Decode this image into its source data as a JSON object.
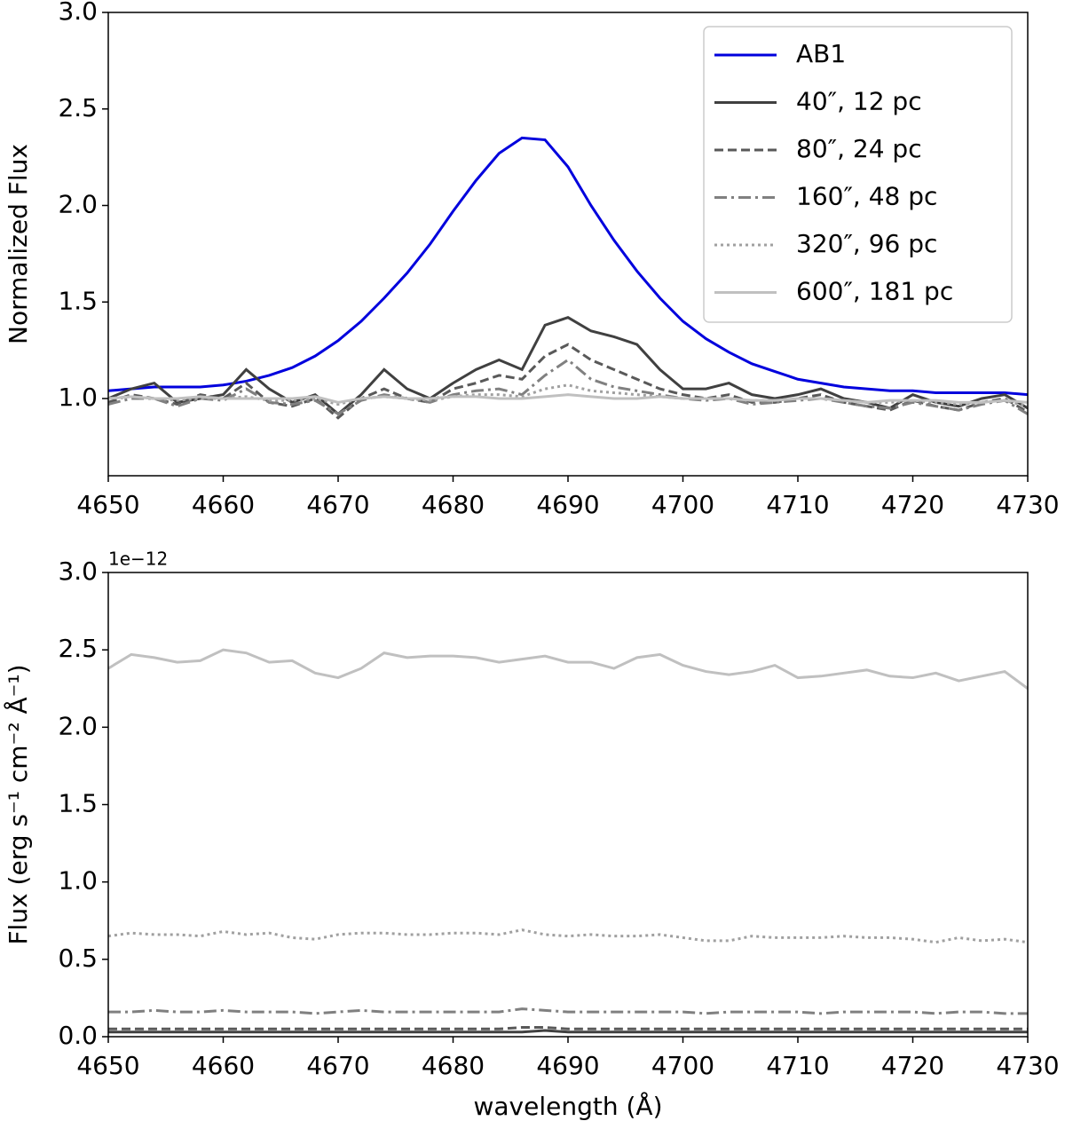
{
  "chart_data": [
    {
      "type": "line",
      "ylabel": "Normalized Flux",
      "x": [
        4650,
        4652,
        4654,
        4656,
        4658,
        4660,
        4662,
        4664,
        4666,
        4668,
        4670,
        4672,
        4674,
        4676,
        4678,
        4680,
        4682,
        4684,
        4686,
        4688,
        4690,
        4692,
        4694,
        4696,
        4698,
        4700,
        4702,
        4704,
        4706,
        4708,
        4710,
        4712,
        4714,
        4716,
        4718,
        4720,
        4722,
        4724,
        4726,
        4728,
        4730
      ],
      "xlim": [
        4650,
        4730
      ],
      "xticks": [
        4650,
        4660,
        4670,
        4680,
        4690,
        4700,
        4710,
        4720,
        4730
      ],
      "ylim": [
        0.6,
        3.0
      ],
      "yticks": [
        {
          "value": 1,
          "label": "1.0"
        },
        1.5,
        {
          "value": 2,
          "label": "2.0"
        },
        2.5,
        {
          "value": 3,
          "label": "3.0"
        }
      ],
      "legend": "upper right",
      "series": [
        {
          "name": "AB1",
          "color": "#0000dd",
          "linestyle": "solid",
          "values": [
            1.04,
            1.05,
            1.06,
            1.06,
            1.06,
            1.07,
            1.09,
            1.12,
            1.16,
            1.22,
            1.3,
            1.4,
            1.52,
            1.65,
            1.8,
            1.97,
            2.13,
            2.27,
            2.35,
            2.34,
            2.2,
            2.0,
            1.82,
            1.66,
            1.52,
            1.4,
            1.31,
            1.24,
            1.18,
            1.14,
            1.1,
            1.08,
            1.06,
            1.05,
            1.04,
            1.04,
            1.03,
            1.03,
            1.03,
            1.03,
            1.02
          ]
        },
        {
          "name": "40″, 12 pc",
          "color": "#404040",
          "linestyle": "solid",
          "values": [
            1.0,
            1.05,
            1.08,
            0.98,
            1.0,
            1.02,
            1.15,
            1.05,
            0.98,
            1.02,
            0.92,
            1.02,
            1.15,
            1.05,
            1.0,
            1.08,
            1.15,
            1.2,
            1.15,
            1.38,
            1.42,
            1.35,
            1.32,
            1.28,
            1.15,
            1.05,
            1.05,
            1.08,
            1.02,
            1.0,
            1.02,
            1.05,
            1.0,
            0.98,
            0.95,
            1.02,
            0.98,
            0.96,
            1.0,
            1.02,
            0.95
          ]
        },
        {
          "name": "80″, 24 pc",
          "color": "#595959",
          "linestyle": "dashed",
          "values": [
            0.98,
            1.02,
            1.0,
            0.97,
            1.02,
            1.0,
            1.08,
            0.98,
            0.96,
            1.0,
            0.9,
            1.0,
            1.05,
            1.0,
            0.98,
            1.05,
            1.08,
            1.12,
            1.1,
            1.22,
            1.28,
            1.2,
            1.15,
            1.1,
            1.05,
            1.02,
            1.0,
            1.02,
            0.98,
            0.98,
            1.0,
            1.02,
            0.98,
            0.96,
            0.94,
            0.99,
            0.96,
            0.94,
            0.98,
            1.0,
            0.93
          ]
        },
        {
          "name": "160″, 48 pc",
          "color": "#808080",
          "linestyle": "dashdot",
          "values": [
            0.97,
            1.0,
            1.0,
            0.96,
            1.0,
            0.99,
            1.05,
            0.98,
            0.97,
            0.99,
            0.92,
            0.99,
            1.02,
            1.0,
            0.98,
            1.02,
            1.04,
            1.05,
            1.02,
            1.12,
            1.2,
            1.1,
            1.06,
            1.04,
            1.02,
            1.0,
            0.99,
            1.0,
            0.97,
            0.98,
            0.99,
            1.0,
            0.98,
            0.96,
            0.95,
            0.98,
            0.96,
            0.94,
            0.97,
            0.99,
            0.92
          ]
        },
        {
          "name": "320″, 96 pc",
          "color": "#a0a0a0",
          "linestyle": "dotted",
          "values": [
            1.0,
            1.01,
            1.0,
            0.99,
            1.0,
            1.0,
            1.01,
            0.99,
            0.99,
            1.0,
            0.97,
            1.0,
            1.01,
            1.0,
            0.99,
            1.01,
            1.02,
            1.02,
            1.01,
            1.05,
            1.07,
            1.04,
            1.03,
            1.02,
            1.01,
            1.0,
            1.0,
            1.0,
            0.99,
            0.99,
            1.0,
            1.0,
            0.99,
            0.98,
            0.98,
            0.99,
            0.98,
            0.97,
            0.98,
            0.99,
            0.96
          ]
        },
        {
          "name": "600″, 181 pc",
          "color": "#c0c0c0",
          "linestyle": "solid",
          "values": [
            1.0,
            1.01,
            1.0,
            1.0,
            1.01,
            1.0,
            1.0,
            1.0,
            1.0,
            1.01,
            0.98,
            1.0,
            1.01,
            1.0,
            1.0,
            1.01,
            1.01,
            1.0,
            1.0,
            1.01,
            1.02,
            1.01,
            1.0,
            1.0,
            1.01,
            1.0,
            1.0,
            1.0,
            0.99,
            0.99,
            1.0,
            1.0,
            0.99,
            0.98,
            0.99,
            0.99,
            0.99,
            0.98,
            0.98,
            0.99,
            0.98
          ]
        }
      ]
    },
    {
      "type": "line",
      "ylabel": "Flux (erg s⁻¹ cm⁻² Å⁻¹)",
      "xlabel": "wavelength (Å)",
      "offset_text": "1e−12",
      "x": [
        4650,
        4652,
        4654,
        4656,
        4658,
        4660,
        4662,
        4664,
        4666,
        4668,
        4670,
        4672,
        4674,
        4676,
        4678,
        4680,
        4682,
        4684,
        4686,
        4688,
        4690,
        4692,
        4694,
        4696,
        4698,
        4700,
        4702,
        4704,
        4706,
        4708,
        4710,
        4712,
        4714,
        4716,
        4718,
        4720,
        4722,
        4724,
        4726,
        4728,
        4730
      ],
      "xlim": [
        4650,
        4730
      ],
      "xticks": [
        4650,
        4660,
        4670,
        4680,
        4690,
        4700,
        4710,
        4720,
        4730
      ],
      "ylim": [
        0,
        3.0
      ],
      "yticks": [
        {
          "value": 0,
          "label": "0.0"
        },
        0.5,
        {
          "value": 1,
          "label": "1.0"
        },
        1.5,
        {
          "value": 2,
          "label": "2.0"
        },
        2.5,
        {
          "value": 3,
          "label": "3.0"
        }
      ],
      "series": [
        {
          "color": "#404040",
          "linestyle": "solid",
          "values": [
            0.03,
            0.03,
            0.03,
            0.03,
            0.03,
            0.03,
            0.03,
            0.03,
            0.03,
            0.03,
            0.03,
            0.03,
            0.03,
            0.03,
            0.03,
            0.03,
            0.03,
            0.03,
            0.03,
            0.04,
            0.03,
            0.03,
            0.03,
            0.03,
            0.03,
            0.03,
            0.03,
            0.03,
            0.03,
            0.03,
            0.03,
            0.03,
            0.03,
            0.03,
            0.03,
            0.03,
            0.03,
            0.03,
            0.03,
            0.03,
            0.03
          ]
        },
        {
          "color": "#595959",
          "linestyle": "dashed",
          "values": [
            0.05,
            0.05,
            0.05,
            0.05,
            0.05,
            0.05,
            0.05,
            0.05,
            0.05,
            0.05,
            0.05,
            0.05,
            0.05,
            0.05,
            0.05,
            0.05,
            0.05,
            0.05,
            0.06,
            0.06,
            0.05,
            0.05,
            0.05,
            0.05,
            0.05,
            0.05,
            0.05,
            0.05,
            0.05,
            0.05,
            0.05,
            0.05,
            0.05,
            0.05,
            0.05,
            0.05,
            0.05,
            0.05,
            0.05,
            0.05,
            0.05
          ]
        },
        {
          "color": "#808080",
          "linestyle": "dashdot",
          "values": [
            0.16,
            0.16,
            0.17,
            0.16,
            0.16,
            0.17,
            0.16,
            0.16,
            0.16,
            0.15,
            0.16,
            0.17,
            0.16,
            0.16,
            0.16,
            0.16,
            0.16,
            0.16,
            0.18,
            0.17,
            0.16,
            0.16,
            0.16,
            0.16,
            0.16,
            0.16,
            0.15,
            0.16,
            0.16,
            0.16,
            0.16,
            0.15,
            0.16,
            0.16,
            0.16,
            0.16,
            0.15,
            0.16,
            0.16,
            0.15,
            0.15
          ]
        },
        {
          "color": "#a0a0a0",
          "linestyle": "dotted",
          "values": [
            0.65,
            0.67,
            0.66,
            0.66,
            0.65,
            0.68,
            0.66,
            0.67,
            0.64,
            0.63,
            0.66,
            0.67,
            0.67,
            0.66,
            0.66,
            0.67,
            0.67,
            0.66,
            0.69,
            0.66,
            0.65,
            0.66,
            0.65,
            0.65,
            0.66,
            0.64,
            0.62,
            0.62,
            0.65,
            0.64,
            0.64,
            0.64,
            0.65,
            0.64,
            0.64,
            0.63,
            0.61,
            0.64,
            0.62,
            0.63,
            0.61
          ]
        },
        {
          "color": "#c0c0c0",
          "linestyle": "solid",
          "values": [
            2.38,
            2.47,
            2.45,
            2.42,
            2.43,
            2.5,
            2.48,
            2.42,
            2.43,
            2.35,
            2.32,
            2.38,
            2.48,
            2.45,
            2.46,
            2.46,
            2.45,
            2.42,
            2.44,
            2.46,
            2.42,
            2.42,
            2.38,
            2.45,
            2.47,
            2.4,
            2.36,
            2.34,
            2.36,
            2.4,
            2.32,
            2.33,
            2.35,
            2.37,
            2.33,
            2.32,
            2.35,
            2.3,
            2.33,
            2.36,
            2.25
          ]
        }
      ]
    }
  ]
}
